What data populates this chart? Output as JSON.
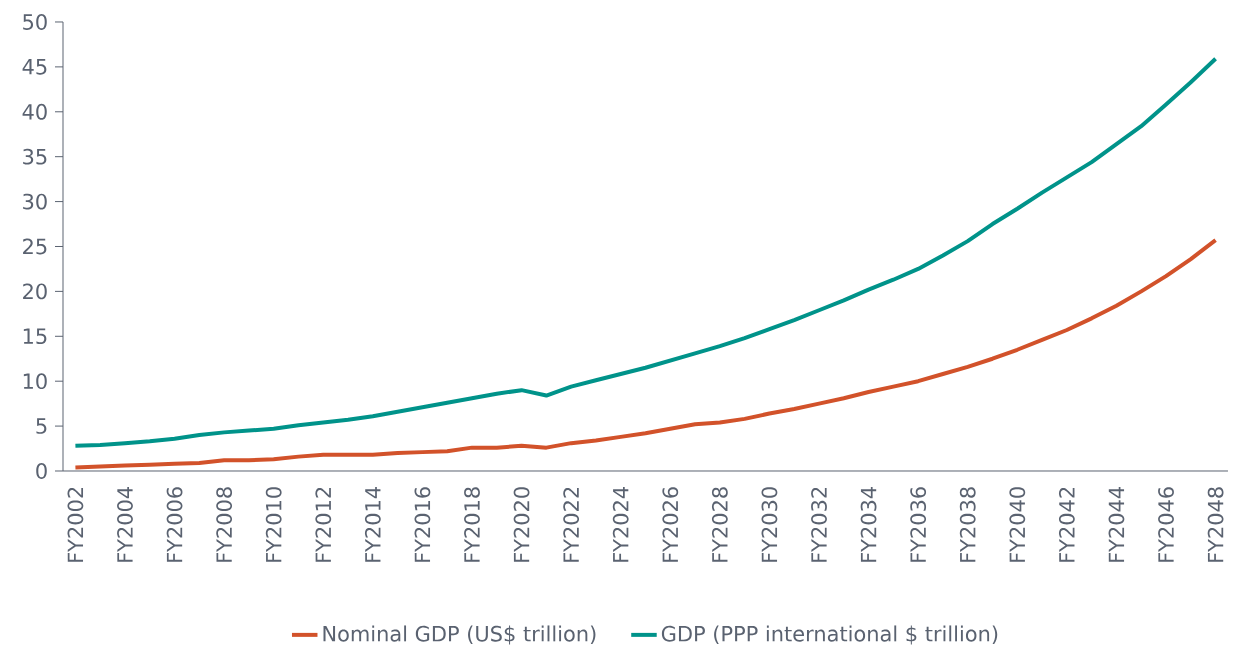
{
  "chart_data": {
    "type": "line",
    "categories": [
      "FY2002",
      null,
      "FY2004",
      null,
      "FY2006",
      null,
      "FY2008",
      null,
      "FY2010",
      null,
      "FY2012",
      null,
      "FY2014",
      null,
      "FY2016",
      null,
      "FY2018",
      null,
      "FY2020",
      null,
      "FY2022",
      null,
      "FY2024",
      null,
      "FY2026",
      null,
      "FY2028",
      null,
      "FY2030",
      null,
      "FY2032",
      null,
      "FY2034",
      null,
      "FY2036",
      null,
      "FY2038",
      null,
      "FY2040",
      null,
      "FY2042",
      null,
      "FY2044",
      null,
      "FY2046",
      null,
      "FY2048"
    ],
    "series": [
      {
        "name": "Nominal GDP (US$ trillion)",
        "color": "#d2522a",
        "values": [
          0.4,
          0.5,
          0.6,
          0.7,
          0.8,
          0.9,
          1.2,
          1.2,
          1.3,
          1.6,
          1.8,
          1.8,
          1.8,
          2.0,
          2.1,
          2.2,
          2.6,
          2.6,
          2.8,
          2.6,
          3.1,
          3.4,
          3.8,
          4.2,
          4.7,
          5.2,
          5.4,
          5.8,
          6.4,
          6.9,
          7.5,
          8.1,
          8.8,
          9.4,
          10.0,
          10.8,
          11.6,
          12.5,
          13.5,
          14.6,
          15.7,
          17.0,
          18.4,
          20.0,
          21.7,
          23.6,
          25.7
        ]
      },
      {
        "name": "GDP (PPP international $ trillion)",
        "color": "#00938a",
        "values": [
          2.8,
          2.9,
          3.1,
          3.3,
          3.6,
          4.0,
          4.3,
          4.5,
          4.7,
          5.1,
          5.4,
          5.7,
          6.1,
          6.6,
          7.1,
          7.6,
          8.1,
          8.6,
          9.0,
          8.4,
          9.4,
          10.1,
          10.8,
          11.5,
          12.3,
          13.1,
          13.9,
          14.8,
          15.8,
          16.8,
          17.9,
          19.0,
          20.2,
          21.3,
          22.5,
          24.0,
          25.6,
          27.5,
          29.2,
          31.0,
          32.7,
          34.4,
          36.4,
          38.4,
          40.8,
          43.3,
          45.9
        ]
      }
    ],
    "ylim": [
      0,
      50
    ],
    "yticks": [
      0,
      5,
      10,
      15,
      20,
      25,
      30,
      35,
      40,
      45,
      50
    ],
    "grid": false,
    "legend": "bottom",
    "marker": "none",
    "line_style": "solid"
  }
}
